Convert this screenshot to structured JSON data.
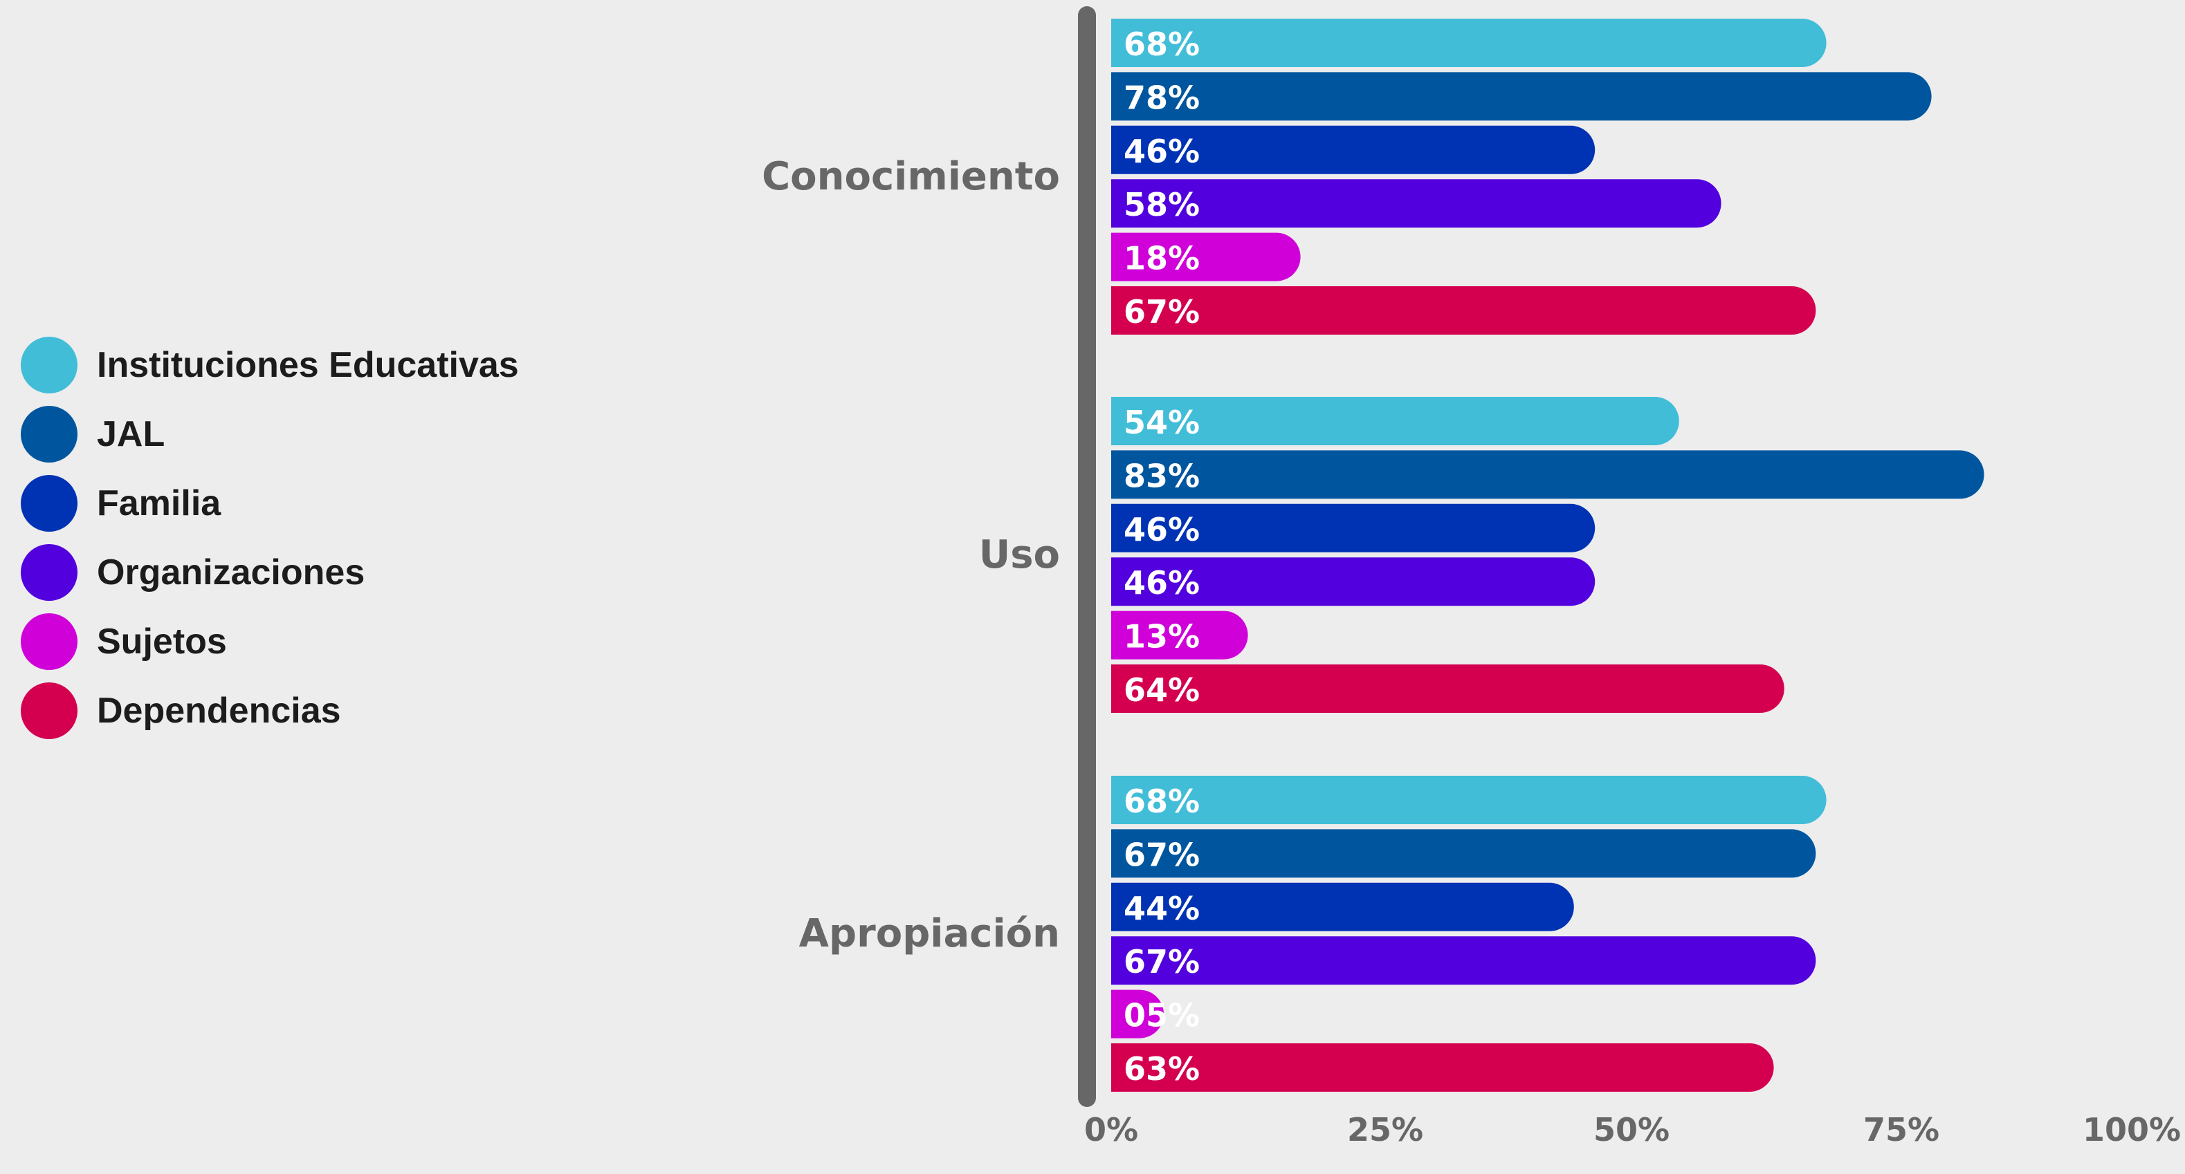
{
  "chart_data": {
    "type": "bar",
    "orientation": "horizontal",
    "categories": [
      "Conocimiento",
      "Uso",
      "Apropiación"
    ],
    "series": [
      {
        "name": "Instituciones Educativas",
        "color": "#41bdd8",
        "values": [
          68,
          54,
          68
        ],
        "labels": [
          "68%",
          "54%",
          "68%"
        ]
      },
      {
        "name": "JAL",
        "color": "#00569e",
        "values": [
          78,
          83,
          67
        ],
        "labels": [
          "78%",
          "83%",
          "67%"
        ]
      },
      {
        "name": "Familia",
        "color": "#0033b4",
        "values": [
          46,
          46,
          44
        ],
        "labels": [
          "46%",
          "46%",
          "44%"
        ]
      },
      {
        "name": "Organizaciones",
        "color": "#5200de",
        "values": [
          58,
          46,
          67
        ],
        "labels": [
          "58%",
          "46%",
          "67%"
        ]
      },
      {
        "name": "Sujetos",
        "color": "#d000d8",
        "values": [
          18,
          13,
          5
        ],
        "labels": [
          "18%",
          "13%",
          "05%"
        ]
      },
      {
        "name": "Dependencias",
        "color": "#d4004f",
        "values": [
          67,
          64,
          63
        ],
        "labels": [
          "67%",
          "64%",
          "63%"
        ]
      }
    ],
    "xlim": [
      0,
      100
    ],
    "xticks": [
      0,
      25,
      50,
      75,
      100
    ],
    "xtick_labels": [
      "0%",
      "25%",
      "50%",
      "75%",
      "100%"
    ],
    "grid": false,
    "legend_position": "left"
  }
}
